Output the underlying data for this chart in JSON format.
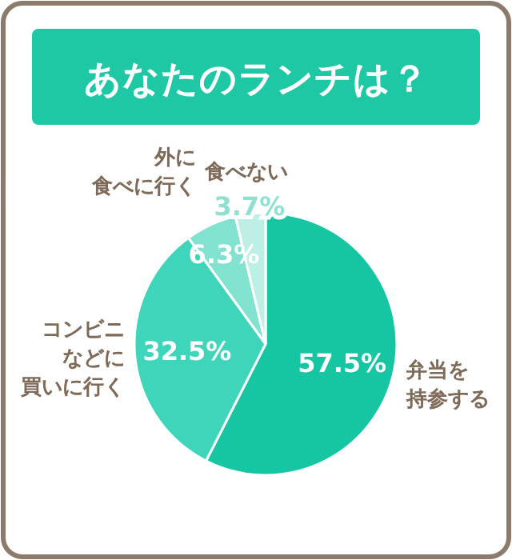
{
  "chart_data": {
    "type": "pie",
    "title": "あなたのランチは？",
    "categories": [
      "弁当を持参する",
      "コンビニなどに買いに行く",
      "外に食べに行く",
      "食べない"
    ],
    "values": [
      57.5,
      32.5,
      6.3,
      3.7
    ],
    "value_labels": [
      "57.5%",
      "32.5%",
      "6.3%",
      "3.7%"
    ],
    "colors": [
      "#16c6a2",
      "#3fd5bb",
      "#80e2cf",
      "#bdefe5"
    ]
  }
}
